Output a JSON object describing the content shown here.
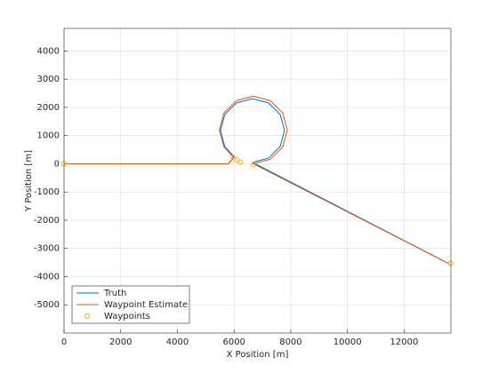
{
  "chart_data": {
    "type": "line",
    "xlabel": "X Position [m]",
    "ylabel": "Y Position [m]",
    "xlim": [
      0,
      13650
    ],
    "ylim": [
      -6000,
      4800
    ],
    "xticks": [
      0,
      2000,
      4000,
      6000,
      8000,
      10000,
      12000
    ],
    "yticks": [
      -5000,
      -4000,
      -3000,
      -2000,
      -1000,
      0,
      1000,
      2000,
      3000,
      4000
    ],
    "grid": true,
    "legend": "lower-left",
    "series": [
      {
        "name": "Truth",
        "color": "#0072bd",
        "kind": "line",
        "x": [
          1300,
          5800,
          6001,
          5671,
          5520,
          5671,
          6085,
          6650,
          7215,
          7629,
          7780,
          7629,
          7215,
          6650,
          13600
        ],
        "values": [
          0,
          0,
          254,
          615,
          1180,
          1745,
          2159,
          2310,
          2159,
          1745,
          1180,
          615,
          201,
          50,
          -3550
        ]
      },
      {
        "name": "Waypoint Estimate",
        "color": "#d95319",
        "kind": "line",
        "x": [
          0,
          5800,
          5991,
          5641,
          5480,
          5641,
          6080,
          6680,
          7280,
          7719,
          7880,
          7719,
          7280,
          6680,
          13600
        ],
        "values": [
          0,
          0,
          217,
          600,
          1200,
          1800,
          2239,
          2400,
          2239,
          1800,
          1200,
          600,
          161,
          0,
          -3550
        ]
      },
      {
        "name": "Waypoints",
        "color": "#edb120",
        "kind": "scatter",
        "x": [
          0,
          5970,
          6100,
          6220,
          6690,
          13640
        ],
        "values": [
          0,
          220,
          130,
          60,
          -30,
          -3530
        ]
      }
    ]
  }
}
